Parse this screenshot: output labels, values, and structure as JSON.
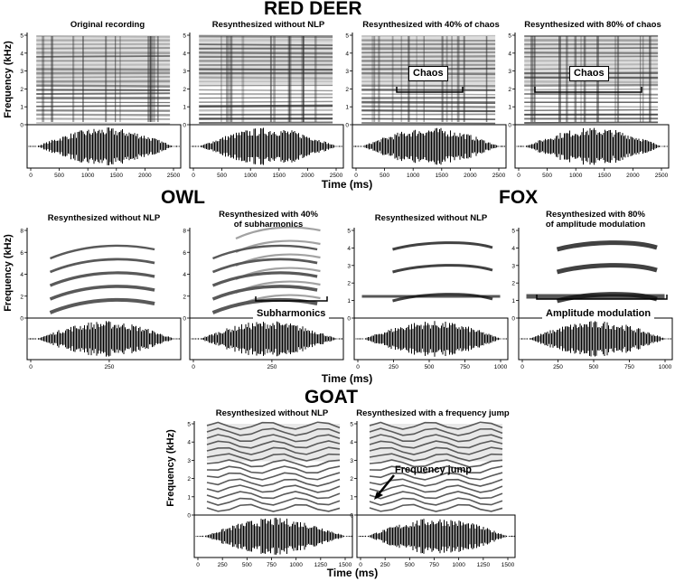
{
  "sections": {
    "red_deer": "RED DEER",
    "owl": "OWL",
    "fox": "FOX",
    "goat": "GOAT"
  },
  "axis_labels": {
    "frequency": "Frequency (kHz)",
    "time": "Time (ms)"
  },
  "panels": {
    "deer_1": {
      "title": "Original recording",
      "yticks": [
        "0",
        "1",
        "2",
        "3",
        "4",
        "5"
      ],
      "xticks": [
        "0",
        "500",
        "1000",
        "1500",
        "2000",
        "2500"
      ]
    },
    "deer_2": {
      "title": "Resynthesized without NLP",
      "yticks": [
        "0",
        "1",
        "2",
        "3",
        "4",
        "5"
      ],
      "xticks": [
        "0",
        "500",
        "1000",
        "1500",
        "2000",
        "2500"
      ]
    },
    "deer_3": {
      "title": "Resynthesized with 40% of chaos",
      "yticks": [
        "0",
        "1",
        "2",
        "3",
        "4",
        "5"
      ],
      "xticks": [
        "0",
        "500",
        "1000",
        "1500",
        "2000",
        "2500"
      ],
      "annotation": "Chaos"
    },
    "deer_4": {
      "title": "Resynthesized with 80% of chaos",
      "yticks": [
        "0",
        "1",
        "2",
        "3",
        "4",
        "5"
      ],
      "xticks": [
        "0",
        "500",
        "1000",
        "1500",
        "2000",
        "2500"
      ],
      "annotation": "Chaos"
    },
    "owl_1": {
      "title": "Resynthesized without NLP",
      "yticks": [
        "0",
        "2",
        "4",
        "6",
        "8"
      ],
      "xticks": [
        "0",
        "250"
      ]
    },
    "owl_2": {
      "title": "Resynthesized with 40%\nof subharmonics",
      "yticks": [
        "0",
        "2",
        "4",
        "6",
        "8"
      ],
      "xticks": [
        "0",
        "250"
      ],
      "annotation": "Subharmonics"
    },
    "fox_1": {
      "title": "Resynthesized without NLP",
      "yticks": [
        "0",
        "1",
        "2",
        "3",
        "4",
        "5"
      ],
      "xticks": [
        "0",
        "250",
        "500",
        "750",
        "1000"
      ]
    },
    "fox_2": {
      "title": "Resynthesized with 80%\nof amplitude modulation",
      "yticks": [
        "0",
        "1",
        "2",
        "3",
        "4",
        "5"
      ],
      "xticks": [
        "0",
        "250",
        "500",
        "750",
        "1000"
      ],
      "annotation": "Amplitude modulation"
    },
    "goat_1": {
      "title": "Resynthesized without NLP",
      "yticks": [
        "0",
        "1",
        "2",
        "3",
        "4",
        "5"
      ],
      "xticks": [
        "0",
        "250",
        "500",
        "750",
        "1000",
        "1250",
        "1500"
      ]
    },
    "goat_2": {
      "title": "Resynthesized with a frequency jump",
      "yticks": [
        "0",
        "1",
        "2",
        "3",
        "4",
        "5"
      ],
      "xticks": [
        "0",
        "250",
        "500",
        "750",
        "1000",
        "1250",
        "1500"
      ],
      "annotation": "Frequency jump"
    }
  }
}
